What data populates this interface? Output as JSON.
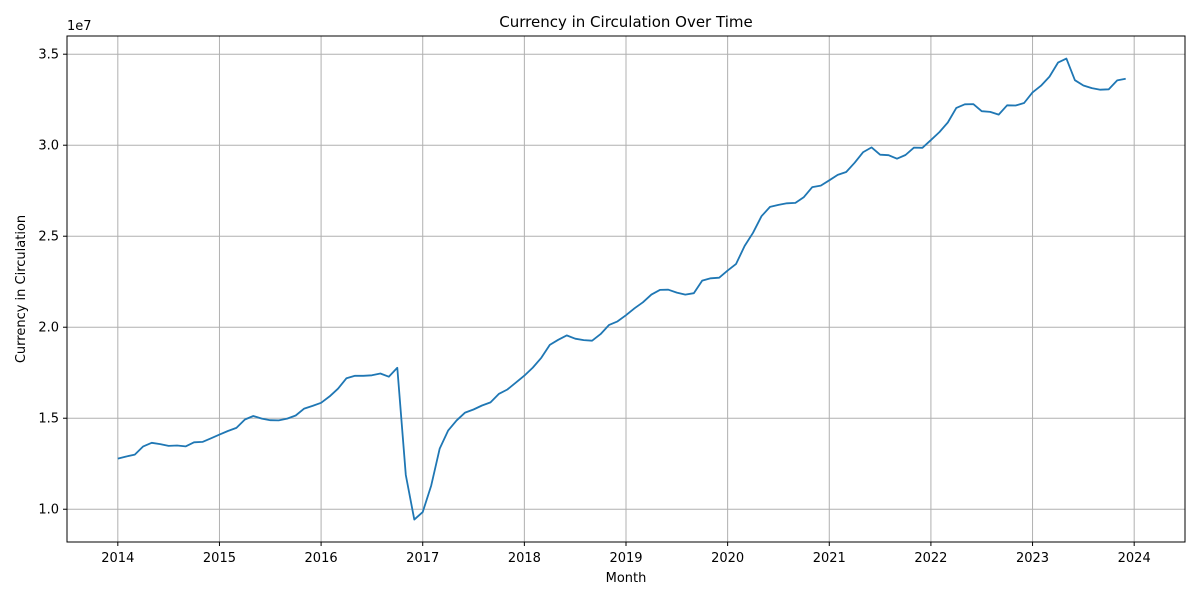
{
  "chart_data": {
    "type": "line",
    "title": "Currency in Circulation Over Time",
    "xlabel": "Month",
    "ylabel": "Currency in Circulation",
    "offset_label": "1e7",
    "x_tick_labels": [
      "2014",
      "2015",
      "2016",
      "2017",
      "2018",
      "2019",
      "2020",
      "2021",
      "2022",
      "2023",
      "2024"
    ],
    "y_tick_labels": [
      "1.0",
      "1.5",
      "2.0",
      "2.5",
      "3.0",
      "3.5"
    ],
    "y_tick_values": [
      10000000,
      15000000,
      20000000,
      25000000,
      30000000,
      35000000
    ],
    "xlim": [
      "2013-07",
      "2024-07"
    ],
    "ylim": [
      8200000,
      36000000
    ],
    "grid": true,
    "series": [
      {
        "color": "#1f77b4",
        "x": [
          "2014-01",
          "2014-02",
          "2014-03",
          "2014-04",
          "2014-05",
          "2014-06",
          "2014-07",
          "2014-08",
          "2014-09",
          "2014-10",
          "2014-11",
          "2014-12",
          "2015-01",
          "2015-02",
          "2015-03",
          "2015-04",
          "2015-05",
          "2015-06",
          "2015-07",
          "2015-08",
          "2015-09",
          "2015-10",
          "2015-11",
          "2015-12",
          "2016-01",
          "2016-02",
          "2016-03",
          "2016-04",
          "2016-05",
          "2016-06",
          "2016-07",
          "2016-08",
          "2016-09",
          "2016-10",
          "2016-11",
          "2016-12",
          "2017-01",
          "2017-02",
          "2017-03",
          "2017-04",
          "2017-05",
          "2017-06",
          "2017-07",
          "2017-08",
          "2017-09",
          "2017-10",
          "2017-11",
          "2017-12",
          "2018-01",
          "2018-02",
          "2018-03",
          "2018-04",
          "2018-05",
          "2018-06",
          "2018-07",
          "2018-08",
          "2018-09",
          "2018-10",
          "2018-11",
          "2018-12",
          "2019-01",
          "2019-02",
          "2019-03",
          "2019-04",
          "2019-05",
          "2019-06",
          "2019-07",
          "2019-08",
          "2019-09",
          "2019-10",
          "2019-11",
          "2019-12",
          "2020-01",
          "2020-02",
          "2020-03",
          "2020-04",
          "2020-05",
          "2020-06",
          "2020-07",
          "2020-08",
          "2020-09",
          "2020-10",
          "2020-11",
          "2020-12",
          "2021-01",
          "2021-02",
          "2021-03",
          "2021-04",
          "2021-05",
          "2021-06",
          "2021-07",
          "2021-08",
          "2021-09",
          "2021-10",
          "2021-11",
          "2021-12",
          "2022-01",
          "2022-02",
          "2022-03",
          "2022-04",
          "2022-05",
          "2022-06",
          "2022-07",
          "2022-08",
          "2022-09",
          "2022-10",
          "2022-11",
          "2022-12",
          "2023-01",
          "2023-02",
          "2023-03",
          "2023-04",
          "2023-05",
          "2023-06",
          "2023-07",
          "2023-08",
          "2023-09",
          "2023-10",
          "2023-11",
          "2023-12"
        ],
        "values": [
          12780000,
          12900000,
          13000000,
          13450000,
          13650000,
          13580000,
          13480000,
          13500000,
          13450000,
          13680000,
          13700000,
          13900000,
          14100000,
          14300000,
          14470000,
          14930000,
          15120000,
          14980000,
          14890000,
          14880000,
          14980000,
          15150000,
          15530000,
          15680000,
          15850000,
          16200000,
          16620000,
          17200000,
          17330000,
          17330000,
          17360000,
          17460000,
          17280000,
          17770000,
          11880000,
          9430000,
          9840000,
          11300000,
          13330000,
          14320000,
          14880000,
          15310000,
          15480000,
          15700000,
          15870000,
          16340000,
          16580000,
          16960000,
          17340000,
          17780000,
          18320000,
          19030000,
          19310000,
          19550000,
          19370000,
          19290000,
          19260000,
          19620000,
          20130000,
          20320000,
          20660000,
          21040000,
          21370000,
          21790000,
          22050000,
          22060000,
          21900000,
          21790000,
          21870000,
          22560000,
          22690000,
          22720000,
          23110000,
          23480000,
          24460000,
          25190000,
          26100000,
          26610000,
          26720000,
          26810000,
          26830000,
          27150000,
          27700000,
          27780000,
          28070000,
          28370000,
          28530000,
          29040000,
          29620000,
          29880000,
          29480000,
          29450000,
          29260000,
          29460000,
          29870000,
          29860000,
          30280000,
          30720000,
          31250000,
          32050000,
          32250000,
          32260000,
          31870000,
          31830000,
          31680000,
          32190000,
          32180000,
          32320000,
          32900000,
          33270000,
          33770000,
          34540000,
          34760000,
          33570000,
          33280000,
          33140000,
          33050000,
          33070000,
          33560000,
          33650000
        ]
      }
    ]
  }
}
